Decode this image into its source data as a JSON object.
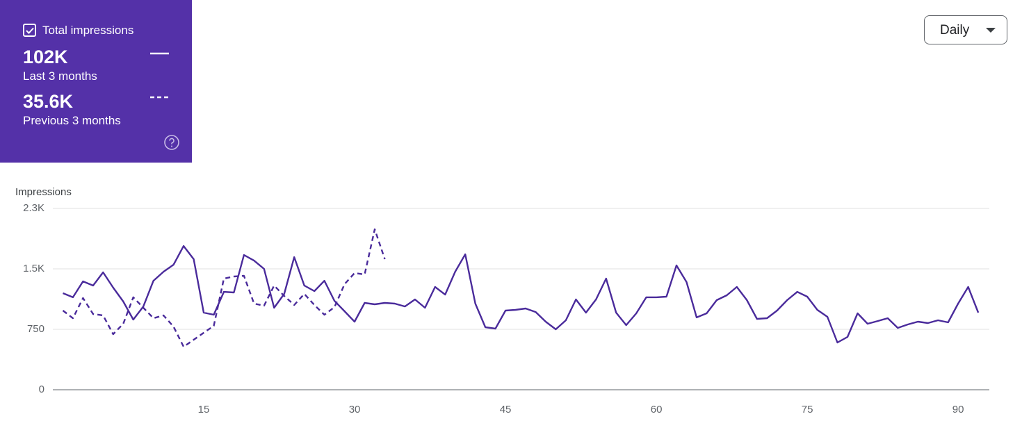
{
  "card": {
    "metric": "Total impressions",
    "items": [
      {
        "value": "102K",
        "label": "Last 3 months"
      },
      {
        "value": "35.6K",
        "label": "Previous 3 months"
      }
    ]
  },
  "control": {
    "selected": "Daily"
  },
  "chart_data": {
    "type": "line",
    "y_label": "Impressions",
    "color": "#4a2b9b",
    "grid": true,
    "xlim": [
      0,
      93.1
    ],
    "xticks": [
      15,
      30,
      45,
      60,
      75,
      90
    ],
    "ylim": [
      0,
      2250
    ],
    "yticks": [
      0,
      750,
      {
        "value": 1500,
        "label": "1.5K"
      },
      {
        "value": 2250,
        "label": "2.3K"
      }
    ],
    "x": [
      1,
      2,
      3,
      4,
      5,
      6,
      7,
      8,
      9,
      10,
      11,
      12,
      13,
      14,
      15,
      16,
      17,
      18,
      19,
      20,
      21,
      22,
      23,
      24,
      25,
      26,
      27,
      28,
      29,
      30,
      31,
      32,
      33,
      34,
      35,
      36,
      37,
      38,
      39,
      40,
      41,
      42,
      43,
      44,
      45,
      46,
      47,
      48,
      49,
      50,
      51,
      52,
      53,
      54,
      55,
      56,
      57,
      58,
      59,
      60,
      61,
      62,
      63,
      64,
      65,
      66,
      67,
      68,
      69,
      70,
      71,
      72,
      73,
      74,
      75,
      76,
      77,
      78,
      79,
      80,
      81,
      82,
      83,
      84,
      85,
      86,
      87,
      88,
      89,
      90,
      91,
      92
    ],
    "series": [
      {
        "name": "Last 3 months",
        "line_style": "solid",
        "values": [
          1198,
          1147,
          1345,
          1293,
          1457,
          1267,
          1095,
          871,
          1034,
          1353,
          1465,
          1552,
          1784,
          1621,
          957,
          931,
          1215,
          1207,
          1672,
          1603,
          1500,
          1017,
          1190,
          1646,
          1293,
          1224,
          1353,
          1103,
          974,
          845,
          1078,
          1060,
          1078,
          1069,
          1034,
          1121,
          1017,
          1276,
          1181,
          1465,
          1681,
          1069,
          776,
          759,
          983,
          991,
          1009,
          965,
          845,
          750,
          862,
          1121,
          957,
          1121,
          1379,
          957,
          802,
          948,
          1147,
          1147,
          1155,
          1543,
          1336,
          897,
          948,
          1112,
          1172,
          1276,
          1112,
          879,
          888,
          983,
          1112,
          1215,
          1155,
          991,
          905,
          586,
          655,
          948,
          819,
          853,
          888,
          767,
          810,
          845,
          828,
          862,
          836,
          1069,
          1276,
          957
        ]
      },
      {
        "name": "Previous 3 months",
        "line_style": "dashed",
        "values": [
          983,
          888,
          1138,
          940,
          922,
          690,
          819,
          1147,
          1017,
          888,
          922,
          784,
          534,
          621,
          707,
          793,
          1379,
          1405,
          1414,
          1069,
          1043,
          1293,
          1164,
          1052,
          1190,
          1052,
          931,
          1026,
          1310,
          1448,
          1431,
          1991,
          1621,
          null,
          null,
          null,
          null,
          null,
          null,
          null,
          null,
          null,
          null,
          null,
          null,
          null,
          null,
          null,
          null,
          null,
          null,
          null,
          null,
          null,
          null,
          null,
          null,
          null,
          null,
          null,
          null,
          null,
          null,
          null,
          null,
          null,
          null,
          null,
          null,
          null,
          null,
          null,
          null,
          null,
          null,
          null,
          null,
          null,
          null,
          null,
          null,
          null,
          null,
          null,
          null,
          null,
          null,
          null,
          null,
          null,
          null,
          null
        ]
      }
    ]
  }
}
